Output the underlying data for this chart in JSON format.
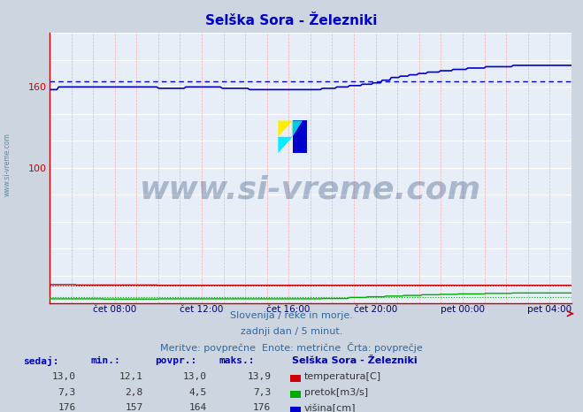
{
  "title": "Selška Sora - Železniki",
  "title_color": "#0000cc",
  "bg_color": "#cdd5e0",
  "plot_bg_color": "#e8eef8",
  "grid_h_color": "#ffffff",
  "grid_v_color": "#ffaaaa",
  "x_tick_labels": [
    "čet 08:00",
    "čet 12:00",
    "čet 16:00",
    "čet 20:00",
    "pet 00:00",
    "pet 04:00"
  ],
  "x_tick_positions": [
    0.125,
    0.291,
    0.458,
    0.625,
    0.791,
    0.958
  ],
  "ylim": [
    0,
    200
  ],
  "y_labeled_ticks": [
    100,
    160
  ],
  "n_points": 288,
  "temp_sedaj": "13,0",
  "temp_min": "12,1",
  "temp_avg": "13,0",
  "temp_max": "13,9",
  "temp_sedaj_v": 13.0,
  "temp_avg_v": 13.0,
  "pretok_sedaj": "7,3",
  "pretok_min": "2,8",
  "pretok_avg": "4,5",
  "pretok_max": "7,3",
  "pretok_avg_v": 4.5,
  "visina_sedaj": "176",
  "visina_min": "157",
  "visina_avg": "164",
  "visina_max": "176",
  "visina_avg_v": 164,
  "temp_color": "#cc0000",
  "pretok_color": "#00aa00",
  "visina_color": "#0000cc",
  "footer_line1": "Slovenija / reke in morje.",
  "footer_line2": "zadnji dan / 5 minut.",
  "footer_line3": "Meritve: povprečne  Enote: metrične  Črta: povprečje",
  "watermark_text": "www.si-vreme.com",
  "watermark_color": "#1a3a6a",
  "left_label": "www.si-vreme.com",
  "left_label_color": "#336688"
}
